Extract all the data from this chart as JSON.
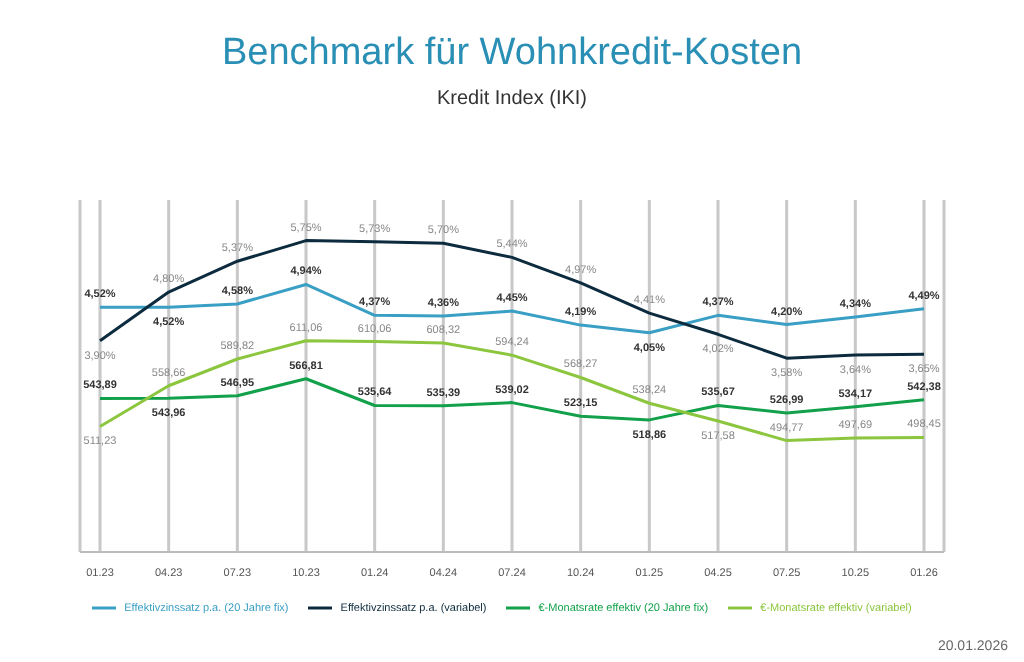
{
  "chart_data": {
    "type": "line",
    "title": "Benchmark für Wohnkredit-Kosten",
    "subtitle": "Kredit Index (IKI)",
    "categories": [
      "01.23",
      "04.23",
      "07.23",
      "10.23",
      "01.24",
      "04.24",
      "07.24",
      "10.24",
      "01.25",
      "04.25",
      "07.25",
      "10.25",
      "01.26"
    ],
    "series": [
      {
        "name": "Effektivzinssatz p.a. (20 Jahre fix)",
        "color": "#3a9fc4",
        "values": [
          4.52,
          4.52,
          4.58,
          4.94,
          4.37,
          4.36,
          4.45,
          4.19,
          4.05,
          4.37,
          4.2,
          4.34,
          4.49
        ],
        "value_labels": [
          "4,52%",
          "4,52%",
          "4,58%",
          "4,94%",
          "4,37%",
          "4,36%",
          "4,45%",
          "4,19%",
          "4,05%",
          "4,37%",
          "4,20%",
          "4,34%",
          "4,49%"
        ]
      },
      {
        "name": "Effektivzinssatz p.a. (variabel)",
        "color": "#0d2b3e",
        "values": [
          3.9,
          4.8,
          5.37,
          5.75,
          5.73,
          5.7,
          5.44,
          4.97,
          4.41,
          4.02,
          3.58,
          3.64,
          3.65
        ],
        "value_labels": [
          "3,90%",
          "4,80%",
          "5,37%",
          "5,75%",
          "5,73%",
          "5,70%",
          "5,44%",
          "4,97%",
          "4,41%",
          "4,02%",
          "3,58%",
          "3,64%",
          "3,65%"
        ]
      },
      {
        "name": "€-Monatsrate effektiv (20 Jahre fix)",
        "color": "#12a14a",
        "axis": "y2",
        "values": [
          543.89,
          543.96,
          546.95,
          566.81,
          535.64,
          535.39,
          539.02,
          523.15,
          518.86,
          535.67,
          526.99,
          534.17,
          542.38
        ],
        "value_labels": [
          "543,89",
          "543,96",
          "546,95",
          "566,81",
          "535,64",
          "535,39",
          "539,02",
          "523,15",
          "518,86",
          "535,67",
          "526,99",
          "534,17",
          "542,38"
        ]
      },
      {
        "name": "€-Monatsrate effektiv (variabel)",
        "color": "#8cc63f",
        "axis": "y2",
        "values": [
          511.23,
          558.66,
          589.82,
          611.06,
          610.06,
          608.32,
          594.24,
          568.27,
          538.24,
          517.58,
          494.77,
          497.69,
          498.45
        ],
        "value_labels": [
          "511,23",
          "558,66",
          "589,82",
          "611,06",
          "610,06",
          "608,32",
          "594,24",
          "568,27",
          "538,24",
          "517,58",
          "494,77",
          "497,69",
          "498,45"
        ]
      }
    ],
    "ylim": [
      0,
      6.5
    ],
    "y2lim": [
      365,
      775
    ],
    "tick_labels": "x",
    "grid": "x",
    "legend": "bottom",
    "marker": "none",
    "line_style": "solid",
    "annotations": [
      "20.01.2026"
    ]
  }
}
